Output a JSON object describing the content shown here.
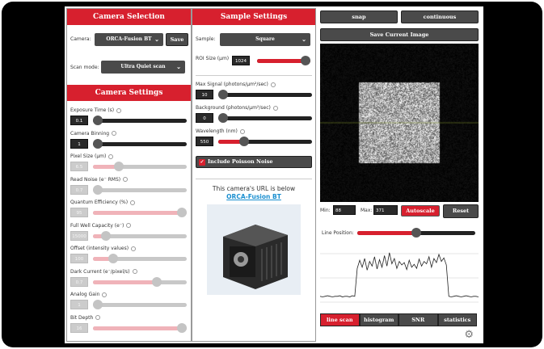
{
  "camera_selection": {
    "title": "Camera Selection",
    "camera_label": "Camera:",
    "camera_value": "ORCA-Fusion BT",
    "save_label": "Save",
    "scan_label": "Scan mode:",
    "scan_value": "Ultra Quiet scan"
  },
  "camera_settings": {
    "title": "Camera Settings",
    "rows": [
      {
        "label": "Exposure Time (s)",
        "value": "0.1",
        "level": 0.0,
        "enabled": true
      },
      {
        "label": "Camera Binning",
        "value": "1",
        "level": 0.0,
        "enabled": true
      },
      {
        "label": "Pixel Size (µm)",
        "value": "6.5",
        "level": 0.25,
        "enabled": false
      },
      {
        "label": "Read Noise (e⁻ RMS)",
        "value": "0.7",
        "level": 0.0,
        "enabled": false
      },
      {
        "label": "Quantum Efficiency (%)",
        "value": "95",
        "level": 1.0,
        "enabled": false
      },
      {
        "label": "Full Well Capacity (e⁻)",
        "value": "15000",
        "level": 0.1,
        "enabled": false
      },
      {
        "label": "Offset (intensity values)",
        "value": "100",
        "level": 0.18,
        "enabled": false
      },
      {
        "label": "Dark Current (e⁻/pixel/s)",
        "value": "0.7",
        "level": 0.7,
        "enabled": false
      },
      {
        "label": "Analog Gain",
        "value": "1",
        "level": 0.0,
        "enabled": false
      },
      {
        "label": "Bit Depth",
        "value": "16",
        "level": 1.0,
        "enabled": false
      }
    ]
  },
  "sample_settings": {
    "title": "Sample Settings",
    "sample_label": "Sample:",
    "sample_value": "Square",
    "roi_label": "ROI Size (µm)",
    "roi_value": "1024",
    "roi_level": 1.0,
    "rows": [
      {
        "label": "Max Signal (photons/µm²/sec)",
        "value": "10",
        "level": 0.0,
        "enabled": true
      },
      {
        "label": "Background (photons/µm²/sec)",
        "value": "0",
        "level": 0.0,
        "enabled": true
      },
      {
        "label": "Wavelength (nm)",
        "value": "550",
        "level": 0.25,
        "enabled": true
      }
    ],
    "poisson_label": "Include Poisson Noise",
    "poisson_checked": true,
    "url_text": "This camera's URL is below",
    "url_link": "ORCA-Fusion BT"
  },
  "viewer": {
    "snap": "snap",
    "continuous": "continuous",
    "save_image": "Save Current Image",
    "min_label": "Min:",
    "min_value": "88",
    "max_label": "Max:",
    "max_value": "371",
    "autoscale": "Autoscale",
    "reset": "Reset",
    "line_label": "Line Position:",
    "line_level": 0.5,
    "tabs": [
      "line scan",
      "histogram",
      "SNR",
      "statistics"
    ],
    "active_tab": "line scan"
  },
  "line_scan": [
    10,
    9,
    10,
    11,
    10,
    9,
    10,
    10,
    11,
    9,
    10,
    10,
    9,
    11,
    10,
    58,
    72,
    60,
    75,
    55,
    70,
    62,
    78,
    57,
    73,
    60,
    80,
    62,
    85,
    66,
    75,
    58,
    70,
    64,
    68,
    56,
    72,
    60,
    65,
    58,
    74,
    62,
    70,
    66,
    78,
    60,
    75,
    68,
    82,
    70,
    76,
    64,
    10,
    9,
    10,
    11,
    10,
    9,
    10,
    11,
    10,
    9,
    10,
    10,
    9
  ]
}
